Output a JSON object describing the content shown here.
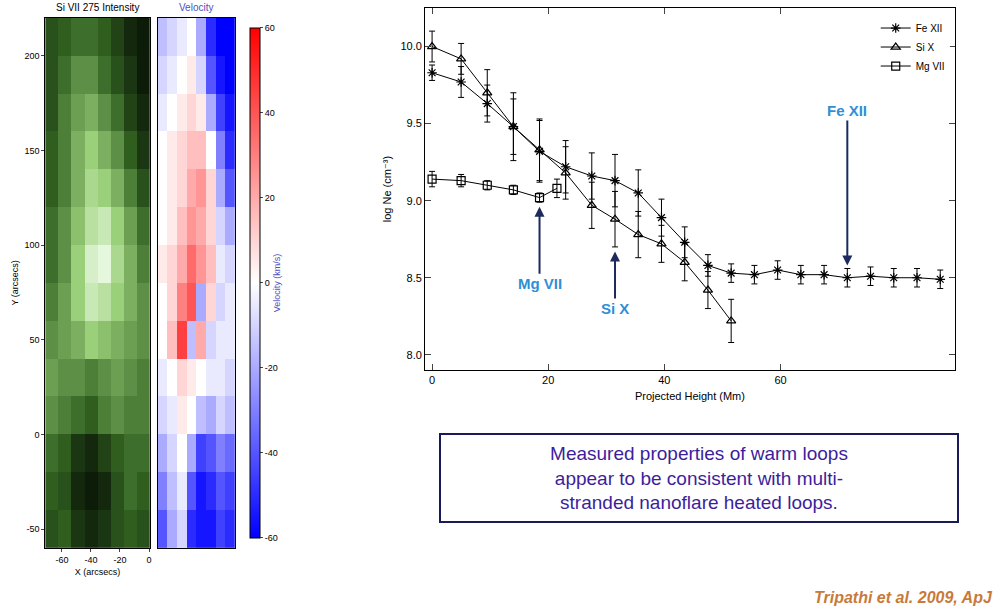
{
  "chart_data": [
    {
      "type": "heatmap",
      "title": "Si VII 275 Intensity",
      "x_label": "X (arcsecs)",
      "y_label": "Y (arcsecs)",
      "x": [
        -67,
        -58,
        -49,
        -40,
        -31,
        -22,
        -13,
        -4
      ],
      "y": [
        -50,
        -30,
        -10,
        10,
        30,
        50,
        70,
        90,
        110,
        130,
        150,
        170,
        190,
        210
      ],
      "z": [
        [
          0.3,
          0.35,
          0.2,
          0.15,
          0.2,
          0.3,
          0.35,
          0.3
        ],
        [
          0.35,
          0.3,
          0.15,
          0.1,
          0.15,
          0.3,
          0.4,
          0.35
        ],
        [
          0.4,
          0.35,
          0.2,
          0.15,
          0.25,
          0.35,
          0.4,
          0.4
        ],
        [
          0.5,
          0.45,
          0.4,
          0.35,
          0.45,
          0.5,
          0.45,
          0.45
        ],
        [
          0.55,
          0.5,
          0.5,
          0.45,
          0.5,
          0.55,
          0.5,
          0.45
        ],
        [
          0.5,
          0.55,
          0.6,
          0.7,
          0.65,
          0.6,
          0.55,
          0.5
        ],
        [
          0.45,
          0.55,
          0.7,
          0.85,
          0.8,
          0.7,
          0.6,
          0.5
        ],
        [
          0.4,
          0.5,
          0.7,
          0.9,
          0.95,
          0.75,
          0.6,
          0.45
        ],
        [
          0.4,
          0.5,
          0.65,
          0.8,
          0.85,
          0.7,
          0.55,
          0.4
        ],
        [
          0.35,
          0.45,
          0.6,
          0.75,
          0.7,
          0.6,
          0.45,
          0.3
        ],
        [
          0.35,
          0.45,
          0.6,
          0.7,
          0.6,
          0.5,
          0.35,
          0.2
        ],
        [
          0.3,
          0.45,
          0.55,
          0.6,
          0.5,
          0.4,
          0.25,
          0.15
        ],
        [
          0.3,
          0.4,
          0.5,
          0.5,
          0.4,
          0.3,
          0.2,
          0.1
        ],
        [
          0.3,
          0.35,
          0.4,
          0.4,
          0.35,
          0.25,
          0.15,
          0.1
        ]
      ],
      "zlim": [
        0,
        1
      ],
      "xlim": [
        -71.5,
        0.5
      ],
      "xticks": [
        -60,
        -40,
        -20,
        0
      ],
      "ylim": [
        -60,
        220
      ],
      "yticks": [
        -50,
        0,
        50,
        100,
        150,
        200
      ]
    },
    {
      "type": "heatmap",
      "title": "Velocity",
      "tick_labels": false,
      "colorbar_title": "Velocity (km/s)",
      "x": [
        -67,
        -58,
        -49,
        -40,
        -31,
        -22,
        -13,
        -4
      ],
      "y": [
        -50,
        -30,
        -10,
        10,
        30,
        50,
        70,
        90,
        110,
        130,
        150,
        170,
        190,
        210
      ],
      "z": [
        [
          -40,
          -20,
          -10,
          -50,
          -55,
          -55,
          -45,
          -50
        ],
        [
          -30,
          -15,
          -5,
          -40,
          -55,
          -50,
          -40,
          -45
        ],
        [
          -20,
          -10,
          0,
          -20,
          -45,
          -40,
          -30,
          -35
        ],
        [
          -10,
          -5,
          5,
          0,
          -15,
          -20,
          -10,
          -15
        ],
        [
          -5,
          0,
          10,
          5,
          0,
          -5,
          -5,
          -10
        ],
        [
          0,
          15,
          45,
          -15,
          20,
          -10,
          -5,
          -5
        ],
        [
          0,
          10,
          30,
          40,
          -20,
          10,
          -10,
          -5
        ],
        [
          5,
          10,
          20,
          35,
          25,
          15,
          -5,
          -10
        ],
        [
          0,
          5,
          15,
          25,
          20,
          10,
          -10,
          -20
        ],
        [
          0,
          5,
          10,
          20,
          25,
          10,
          -20,
          -40
        ],
        [
          0,
          5,
          10,
          15,
          15,
          0,
          -30,
          -50
        ],
        [
          -5,
          0,
          5,
          10,
          5,
          -20,
          -45,
          -55
        ],
        [
          -10,
          -5,
          0,
          5,
          -10,
          -40,
          -55,
          -60
        ],
        [
          -15,
          -10,
          -5,
          0,
          -20,
          -50,
          -60,
          -60
        ]
      ],
      "zlim": [
        -60,
        60
      ],
      "zticks": [
        -60,
        -40,
        -20,
        0,
        20,
        40,
        60
      ],
      "xlim": [
        -71.5,
        0.5
      ],
      "ylim": [
        -60,
        220
      ]
    },
    {
      "type": "scatter",
      "x_label": "Projected Height (Mm)",
      "y_label": "log Ne (cm⁻³)",
      "xlim": [
        -1.2,
        90
      ],
      "xticks": [
        0,
        20,
        40,
        60
      ],
      "ylim": [
        7.9,
        10.25
      ],
      "yticks": [
        {
          "value": 8,
          "label": "8.0"
        },
        8.5,
        {
          "value": 9,
          "label": "9.0"
        },
        9.5,
        {
          "value": 10,
          "label": "10.0"
        }
      ],
      "grid": false,
      "legend": "upper right",
      "series": [
        {
          "name": "Fe XII",
          "color": "#000000",
          "marker": "asterisk",
          "x": [
            0,
            5,
            9.5,
            14,
            18.5,
            23,
            27.5,
            31.5,
            35.5,
            39.5,
            43.5,
            47.5,
            51.5,
            55.5,
            59.5,
            63.5,
            67.5,
            71.5,
            75.5,
            79.5,
            83.5,
            87.5
          ],
          "values": [
            9.83,
            9.77,
            9.63,
            9.48,
            9.32,
            9.22,
            9.16,
            9.13,
            9.05,
            8.89,
            8.73,
            8.58,
            8.53,
            8.52,
            8.55,
            8.52,
            8.52,
            8.5,
            8.51,
            8.5,
            8.5,
            8.49
          ],
          "errors": [
            0.05,
            0.1,
            0.12,
            0.18,
            0.2,
            0.17,
            0.15,
            0.17,
            0.15,
            0.12,
            0.1,
            0.07,
            0.06,
            0.06,
            0.06,
            0.06,
            0.06,
            0.06,
            0.06,
            0.06,
            0.06,
            0.06
          ]
        },
        {
          "name": "Si X",
          "color": "#000000",
          "marker": "triangle",
          "x": [
            0,
            5,
            9.5,
            14,
            18.5,
            23,
            27.5,
            31.5,
            35.5,
            39.5,
            43.5,
            47.5,
            51.5
          ],
          "values": [
            10.0,
            9.92,
            9.7,
            9.48,
            9.33,
            9.18,
            8.97,
            8.88,
            8.78,
            8.72,
            8.6,
            8.42,
            8.22
          ],
          "errors": [
            0.1,
            0.1,
            0.15,
            0.22,
            0.2,
            0.17,
            0.15,
            0.18,
            0.15,
            0.12,
            0.12,
            0.12,
            0.14
          ]
        },
        {
          "name": "Mg VII",
          "color": "#000000",
          "marker": "square",
          "x": [
            0,
            5,
            9.5,
            14,
            18.5,
            21.5
          ],
          "values": [
            9.14,
            9.13,
            9.1,
            9.07,
            9.02,
            9.08
          ],
          "errors": [
            0.05,
            0.04,
            0.03,
            0.03,
            0.03,
            0.06
          ]
        }
      ],
      "annotations": [
        {
          "text": "Mg VII",
          "x": 18.5,
          "y": 8.96
        },
        {
          "text": "Si X",
          "x": 31.5,
          "y": 8.67
        },
        {
          "text": "Fe XII",
          "x": 71.5,
          "y": 8.58
        }
      ]
    }
  ],
  "text_box": "Measured properties of warm loops appear to be consistent with multi-stranded nanoflare heated loops.",
  "citation": "Tripathi et al. 2009, ApJ"
}
